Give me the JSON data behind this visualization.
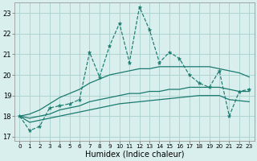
{
  "xlabel": "Humidex (Indice chaleur)",
  "x": [
    0,
    1,
    2,
    3,
    4,
    5,
    6,
    7,
    8,
    9,
    10,
    11,
    12,
    13,
    14,
    15,
    16,
    17,
    18,
    19,
    20,
    21,
    22,
    23
  ],
  "y_main": [
    18.0,
    17.3,
    17.5,
    18.4,
    18.5,
    18.6,
    18.8,
    21.1,
    19.9,
    21.4,
    22.5,
    20.6,
    23.3,
    22.2,
    20.6,
    21.1,
    20.8,
    20.0,
    19.6,
    19.4,
    20.2,
    18.0,
    19.2,
    19.3
  ],
  "y_upper": [
    18.0,
    18.1,
    18.3,
    18.6,
    18.9,
    19.1,
    19.3,
    19.6,
    19.8,
    20.0,
    20.1,
    20.2,
    20.3,
    20.3,
    20.4,
    20.4,
    20.4,
    20.4,
    20.4,
    20.4,
    20.3,
    20.2,
    20.1,
    19.9
  ],
  "y_mid": [
    18.0,
    17.9,
    18.0,
    18.1,
    18.3,
    18.4,
    18.5,
    18.7,
    18.8,
    18.9,
    19.0,
    19.1,
    19.1,
    19.2,
    19.2,
    19.3,
    19.3,
    19.4,
    19.4,
    19.4,
    19.4,
    19.3,
    19.2,
    19.2
  ],
  "y_lower": [
    18.0,
    17.7,
    17.8,
    17.9,
    18.0,
    18.1,
    18.2,
    18.3,
    18.4,
    18.5,
    18.6,
    18.65,
    18.7,
    18.75,
    18.8,
    18.85,
    18.9,
    18.95,
    19.0,
    19.0,
    19.0,
    18.8,
    18.75,
    18.7
  ],
  "line_color": "#1a7a6e",
  "bg_color": "#d8efee",
  "grid_color": "#aed4d1",
  "ylim": [
    16.8,
    23.5
  ],
  "yticks": [
    17,
    18,
    19,
    20,
    21,
    22,
    23
  ],
  "xlim": [
    -0.5,
    23.5
  ]
}
